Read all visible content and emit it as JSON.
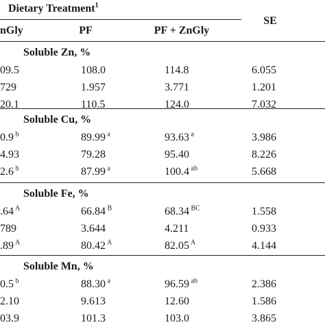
{
  "header": {
    "group_title": "Dietary Treatment",
    "group_sup": "1",
    "col1": "nGly",
    "col2": "PF",
    "col3": "PF + ZnGly",
    "col4": "SE"
  },
  "sections": [
    {
      "title": "Soluble Zn, %",
      "rows": [
        {
          "c1": "09.5",
          "c1s": "",
          "c2": "108.0",
          "c2s": "",
          "c3": "114.8",
          "c3s": "",
          "se": "6.055"
        },
        {
          "c1": "729",
          "c1s": "",
          "c2": "1.957",
          "c2s": "",
          "c3": "3.771",
          "c3s": "",
          "se": "1.201"
        },
        {
          "c1": "20.1",
          "c1s": "",
          "c2": "110.5",
          "c2s": "",
          "c3": "124.0",
          "c3s": "",
          "se": "7.032"
        }
      ]
    },
    {
      "title": "Soluble Cu, %",
      "rows": [
        {
          "c1": "0.9",
          "c1s": "b",
          "c2": "89.99",
          "c2s": "a",
          "c3": "93.63",
          "c3s": "a",
          "se": "3.986"
        },
        {
          "c1": "4.93",
          "c1s": "",
          "c2": "79.28",
          "c2s": "",
          "c3": "95.40",
          "c3s": "",
          "se": "8.226"
        },
        {
          "c1": "2.6",
          "c1s": "b",
          "c2": "87.99",
          "c2s": "a",
          "c3": "100.4",
          "c3s": "ab",
          "se": "5.668"
        }
      ]
    },
    {
      "title": "Soluble Fe, %",
      "rows": [
        {
          "c1": ".64",
          "c1s": "A",
          "c2": "66.84",
          "c2s": "B",
          "c3": "68.34",
          "c3s": "BC",
          "se": "1.558"
        },
        {
          "c1": "789",
          "c1s": "",
          "c2": "3.644",
          "c2s": "",
          "c3": "4.211",
          "c3s": "",
          "se": "0.933"
        },
        {
          "c1": ".89",
          "c1s": "A",
          "c2": "80.42",
          "c2s": "A",
          "c3": "82.05",
          "c3s": "A",
          "se": "4.144"
        }
      ]
    },
    {
      "title": "Soluble Mn, %",
      "rows": [
        {
          "c1": "0.5",
          "c1s": "b",
          "c2": "88.30",
          "c2s": "a",
          "c3": "96.59",
          "c3s": "ab",
          "se": "2.386"
        },
        {
          "c1": "2.10",
          "c1s": "",
          "c2": "9.613",
          "c2s": "",
          "c3": "12.60",
          "c3s": "",
          "se": "1.586"
        },
        {
          "c1": "03.9",
          "c1s": "",
          "c2": "101.3",
          "c2s": "",
          "c3": "103.0",
          "c3s": "",
          "se": "3.865"
        }
      ]
    }
  ]
}
